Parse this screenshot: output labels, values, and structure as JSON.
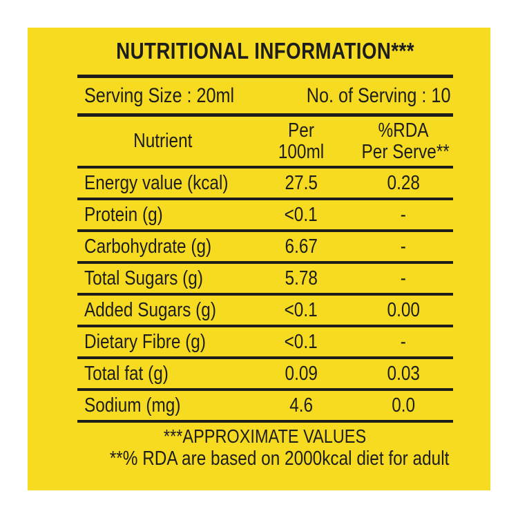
{
  "label": {
    "title": "NUTRITIONAL INFORMATION***",
    "serving_size": "Serving Size : 20ml",
    "serving_count": "No. of Serving : 10",
    "table": {
      "header": {
        "nutrient": "Nutrient",
        "col2": [
          "Per",
          "100ml"
        ],
        "col3": [
          "%RDA",
          "Per Serve**"
        ]
      },
      "rows": [
        {
          "nutrient": "Energy value (kcal)",
          "per_100ml": "27.5",
          "rda_per_serve": "0.28"
        },
        {
          "nutrient": "Protein (g)",
          "per_100ml": "<0.1",
          "rda_per_serve": "-"
        },
        {
          "nutrient": "Carbohydrate (g)",
          "per_100ml": "6.67",
          "rda_per_serve": "-"
        },
        {
          "nutrient": "Total Sugars (g)",
          "per_100ml": "5.78",
          "rda_per_serve": "-"
        },
        {
          "nutrient": "Added Sugars (g)",
          "per_100ml": "<0.1",
          "rda_per_serve": "0.00"
        },
        {
          "nutrient": "Dietary Fibre (g)",
          "per_100ml": "<0.1",
          "rda_per_serve": "-"
        },
        {
          "nutrient": "Total fat (g)",
          "per_100ml": "0.09",
          "rda_per_serve": "0.03"
        },
        {
          "nutrient": "Sodium (mg)",
          "per_100ml": "4.6",
          "rda_per_serve": "0.0"
        }
      ]
    },
    "footnotes": {
      "approximate": "***APPROXIMATE VALUES",
      "rda_basis": "**% RDA are based on 2000kcal diet for adult"
    },
    "colors": {
      "background": "#f7db21",
      "ink": "#1d1d1b",
      "page": "#ffffff"
    }
  }
}
